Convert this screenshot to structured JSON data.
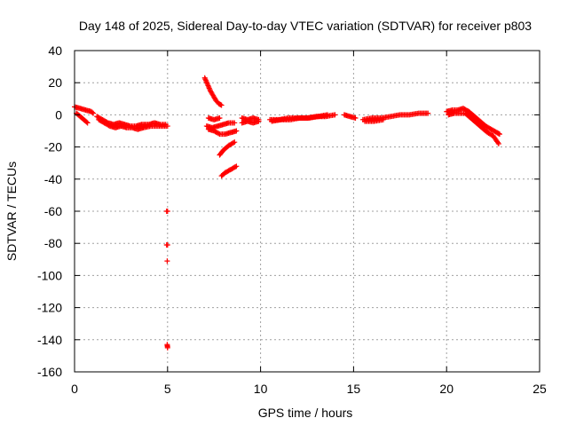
{
  "chart_data": {
    "type": "scatter",
    "title": "Day 148 of 2025, Sidereal Day-to-day VTEC variation (SDTVAR) for receiver p803",
    "xlabel": "GPS time / hours",
    "ylabel": "SDTVAR / TECUs",
    "xlim": [
      0,
      25
    ],
    "ylim": [
      -160,
      40
    ],
    "xticks": [
      0,
      5,
      10,
      15,
      20,
      25
    ],
    "yticks": [
      40,
      20,
      0,
      -20,
      -40,
      -60,
      -80,
      -100,
      -120,
      -140,
      -160
    ],
    "grid": true,
    "marker": "plus",
    "color": "#ff0000",
    "series": [
      {
        "name": "SDTVAR",
        "segments": [
          {
            "x": [
              0.0,
              0.3,
              0.6,
              0.9,
              1.0
            ],
            "y": [
              5,
              4,
              3,
              2,
              1
            ]
          },
          {
            "x": [
              0.1,
              0.3,
              0.5,
              0.7
            ],
            "y": [
              1,
              -1,
              -3,
              -5
            ]
          },
          {
            "x": [
              1.2,
              1.5,
              1.8,
              2.1,
              2.4,
              2.7,
              3.0,
              3.3,
              3.6,
              4.0,
              4.3,
              4.6,
              4.9
            ],
            "y": [
              -1,
              -3,
              -5,
              -6,
              -5,
              -6,
              -7,
              -7,
              -6,
              -6,
              -5,
              -6,
              -6
            ]
          },
          {
            "x": [
              1.3,
              1.6,
              1.9,
              2.2,
              2.5,
              2.8,
              3.1,
              3.4,
              3.7,
              4.1,
              4.4,
              4.7,
              5.0
            ],
            "y": [
              -3,
              -5,
              -7,
              -8,
              -7,
              -8,
              -8,
              -9,
              -8,
              -7,
              -7,
              -7,
              -7
            ]
          },
          {
            "x": [
              4.95,
              5.0
            ],
            "y": [
              -60,
              -60
            ]
          },
          {
            "x": [
              4.95,
              5.0
            ],
            "y": [
              -81,
              -81
            ]
          },
          {
            "x": [
              4.98
            ],
            "y": [
              -91
            ]
          },
          {
            "x": [
              4.98,
              5.0
            ],
            "y": [
              -143,
              -145
            ]
          },
          {
            "x": [
              7.0,
              7.15,
              7.3,
              7.45,
              7.6,
              7.75,
              7.9
            ],
            "y": [
              23,
              19,
              15,
              12,
              9,
              7,
              6
            ]
          },
          {
            "x": [
              7.2,
              7.5,
              7.8
            ],
            "y": [
              -2,
              -3,
              -2
            ]
          },
          {
            "x": [
              7.1,
              7.4,
              7.7,
              8.0,
              8.3,
              8.6
            ],
            "y": [
              -7,
              -8,
              -7,
              -6,
              -5,
              -5
            ]
          },
          {
            "x": [
              7.2,
              7.5,
              7.8,
              8.1,
              8.4,
              8.7
            ],
            "y": [
              -9,
              -10,
              -12,
              -12,
              -11,
              -10
            ]
          },
          {
            "x": [
              7.8,
              8.0,
              8.3,
              8.6
            ],
            "y": [
              -25,
              -22,
              -19,
              -17
            ]
          },
          {
            "x": [
              7.9,
              8.1,
              8.4,
              8.7
            ],
            "y": [
              -38,
              -36,
              -34,
              -32
            ]
          },
          {
            "x": [
              9.0,
              9.3,
              9.6,
              9.9
            ],
            "y": [
              -2,
              -3,
              -2,
              -3
            ]
          },
          {
            "x": [
              9.0,
              9.3,
              9.6,
              9.9
            ],
            "y": [
              -5,
              -4,
              -5,
              -4
            ]
          },
          {
            "x": [
              10.5,
              11.0,
              11.5,
              12.0,
              12.5,
              13.0,
              13.5,
              14.0
            ],
            "y": [
              -3,
              -3,
              -2,
              -2,
              -2,
              -1,
              -1,
              0
            ]
          },
          {
            "x": [
              10.6,
              11.1,
              11.6,
              12.1,
              12.6,
              13.1,
              13.6
            ],
            "y": [
              -4,
              -3,
              -3,
              -2,
              -2,
              -1,
              0
            ]
          },
          {
            "x": [
              14.5,
              14.8,
              15.1
            ],
            "y": [
              0,
              -1,
              -2
            ]
          },
          {
            "x": [
              15.5,
              16.0,
              16.5,
              17.0,
              17.5,
              18.0,
              18.5,
              19.0
            ],
            "y": [
              -3,
              -2,
              -2,
              -1,
              0,
              0,
              1,
              1
            ]
          },
          {
            "x": [
              15.6,
              16.1,
              16.6
            ],
            "y": [
              -4,
              -4,
              -3
            ]
          },
          {
            "x": [
              20.0,
              20.3,
              20.6,
              20.9,
              21.2,
              21.5,
              21.8,
              22.1,
              22.4,
              22.7,
              22.85
            ],
            "y": [
              2,
              3,
              3,
              4,
              2,
              -1,
              -4,
              -7,
              -9,
              -11,
              -12
            ]
          },
          {
            "x": [
              20.1,
              20.4,
              20.7,
              21.0,
              21.3,
              21.6,
              21.9,
              22.2,
              22.5,
              22.8
            ],
            "y": [
              0,
              1,
              1,
              1,
              -2,
              -5,
              -8,
              -11,
              -13,
              -18
            ]
          }
        ]
      }
    ]
  }
}
